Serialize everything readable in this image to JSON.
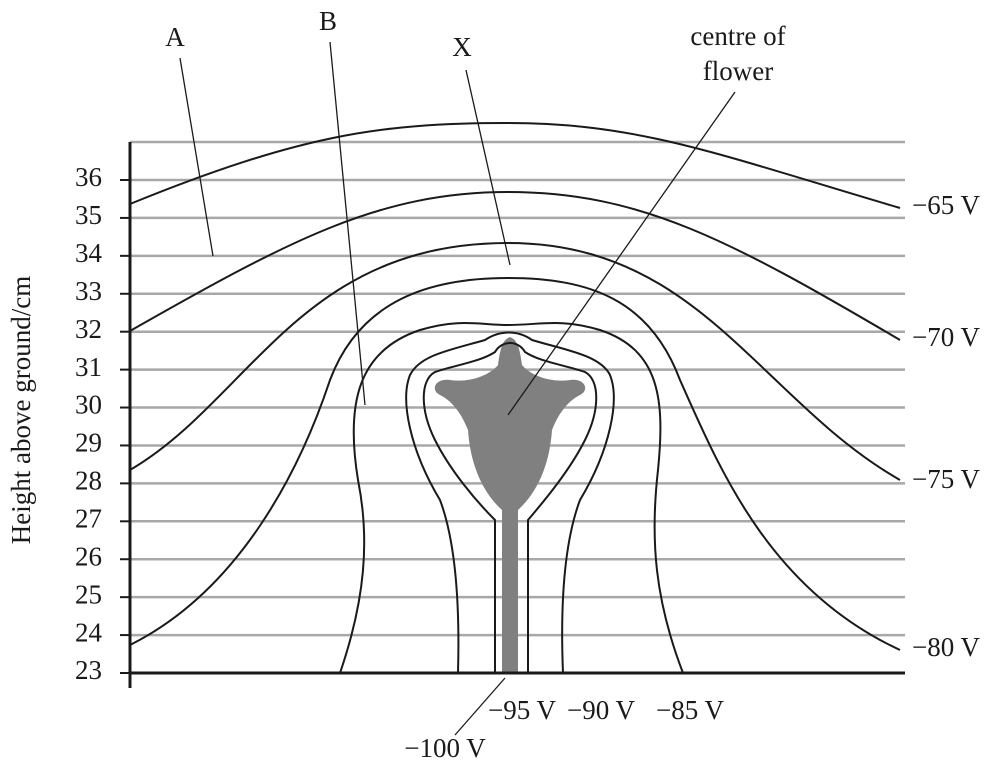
{
  "axis": {
    "label": "Height above ground/cm",
    "ticks": [
      23,
      24,
      25,
      26,
      27,
      28,
      29,
      30,
      31,
      32,
      33,
      34,
      35,
      36
    ]
  },
  "labels": {
    "a": "A",
    "b": "B",
    "x": "X",
    "centre": [
      "centre of",
      "flower"
    ]
  },
  "voltages": {
    "v65": "−65 V",
    "v70": "−70 V",
    "v75": "−75 V",
    "v80": "−80 V",
    "v85": "−85 V",
    "v90": "−90 V",
    "v95": "−95 V",
    "v100": "−100 V"
  }
}
